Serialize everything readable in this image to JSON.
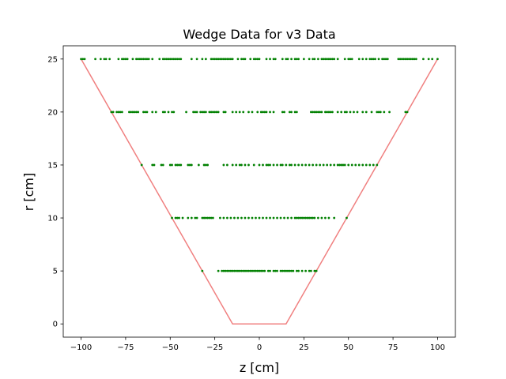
{
  "chart_data": {
    "type": "scatter",
    "title": "Wedge Data for v3 Data",
    "xlabel": "z [cm]",
    "ylabel": "r [cm]",
    "xlim": [
      -110,
      110
    ],
    "ylim": [
      -1.25,
      26.25
    ],
    "xticks": [
      -100,
      -75,
      -50,
      -25,
      0,
      25,
      50,
      75,
      100
    ],
    "yticks": [
      0,
      5,
      10,
      15,
      20,
      25
    ],
    "grid": false,
    "colors": {
      "points": "#008000",
      "boundary": "#f08080",
      "axes": "#000000"
    },
    "boundary": {
      "x": [
        -100,
        -15,
        15,
        100
      ],
      "y": [
        25,
        0,
        0,
        25
      ]
    },
    "layers": [
      {
        "r": 5,
        "z": [
          -32,
          -23,
          -21,
          -20,
          -19,
          -18,
          -17,
          -16,
          -15,
          -14,
          -13,
          -12,
          -11,
          -10,
          -9,
          -8,
          -7,
          -6,
          -5,
          -4,
          -3,
          -2,
          -1,
          0,
          1,
          2,
          3,
          5,
          6,
          8,
          9,
          10,
          12,
          13,
          14,
          15,
          16,
          17,
          18,
          19,
          21,
          22,
          24,
          26,
          28,
          29,
          31,
          32
        ]
      },
      {
        "r": 10,
        "z": [
          -49,
          -47,
          -46,
          -45,
          -43,
          -40,
          -38,
          -36,
          -35,
          -32,
          -31,
          -30,
          -29,
          -28,
          -27,
          -26,
          -22,
          -20,
          -18,
          -16,
          -14,
          -12,
          -10,
          -8,
          -6,
          -4,
          -2,
          0,
          2,
          4,
          6,
          8,
          10,
          12,
          14,
          16,
          18,
          20,
          21,
          22,
          23,
          24,
          25,
          26,
          27,
          28,
          29,
          30,
          31,
          33,
          35,
          37,
          39,
          42,
          49
        ]
      },
      {
        "r": 15,
        "z": [
          -66,
          -60,
          -59,
          -55,
          -54,
          -50,
          -49,
          -47,
          -46,
          -45,
          -44,
          -40,
          -39,
          -38,
          -34,
          -31,
          -30,
          -29,
          -20,
          -18,
          -15,
          -13,
          -11,
          -10,
          -8,
          -6,
          -3,
          0,
          2,
          4,
          5,
          6,
          8,
          10,
          12,
          13,
          15,
          17,
          18,
          20,
          22,
          24,
          26,
          28,
          30,
          32,
          34,
          36,
          38,
          40,
          42,
          44,
          45,
          46,
          47,
          48,
          50,
          52,
          54,
          56,
          58,
          60,
          62,
          64,
          66
        ]
      },
      {
        "r": 20,
        "z": [
          -83,
          -82,
          -80,
          -79,
          -78,
          -77,
          -73,
          -72,
          -71,
          -70,
          -69,
          -68,
          -65,
          -64,
          -63,
          -60,
          -58,
          -54,
          -53,
          -51,
          -49,
          -48,
          -41,
          -37,
          -36,
          -35,
          -33,
          -32,
          -31,
          -30,
          -28,
          -27,
          -26,
          -25,
          -24,
          -23,
          -20,
          -19,
          -15,
          -13,
          -11,
          -9,
          -6,
          -4,
          -1,
          1,
          2,
          3,
          4,
          6,
          8,
          13,
          14,
          17,
          18,
          20,
          21,
          29,
          30,
          31,
          32,
          33,
          34,
          35,
          37,
          38,
          39,
          40,
          41,
          44,
          46,
          48,
          49,
          51,
          53,
          55,
          58,
          60,
          63,
          66,
          67,
          68,
          70,
          73,
          82,
          83
        ]
      },
      {
        "r": 25,
        "z": [
          -100,
          -99,
          -98,
          -92,
          -89,
          -87,
          -86,
          -84,
          -79,
          -77,
          -76,
          -75,
          -74,
          -71,
          -69,
          -68,
          -67,
          -66,
          -65,
          -64,
          -63,
          -62,
          -60,
          -56,
          -54,
          -53,
          -52,
          -51,
          -50,
          -49,
          -48,
          -47,
          -46,
          -45,
          -44,
          -38,
          -35,
          -32,
          -30,
          -27,
          -26,
          -25,
          -24,
          -23,
          -22,
          -21,
          -20,
          -19,
          -18,
          -17,
          -16,
          -15,
          -12,
          -10,
          -9,
          -8,
          -5,
          -3,
          -2,
          -1,
          0,
          4,
          6,
          8,
          9,
          13,
          15,
          16,
          18,
          20,
          21,
          22,
          25,
          28,
          30,
          31,
          33,
          35,
          36,
          37,
          38,
          39,
          40,
          41,
          42,
          44,
          48,
          50,
          51,
          52,
          56,
          58,
          60,
          62,
          63,
          64,
          65,
          67,
          69,
          70,
          71,
          72,
          78,
          79,
          80,
          81,
          82,
          83,
          84,
          85,
          86,
          87,
          88,
          92,
          95,
          97,
          100
        ]
      }
    ]
  }
}
